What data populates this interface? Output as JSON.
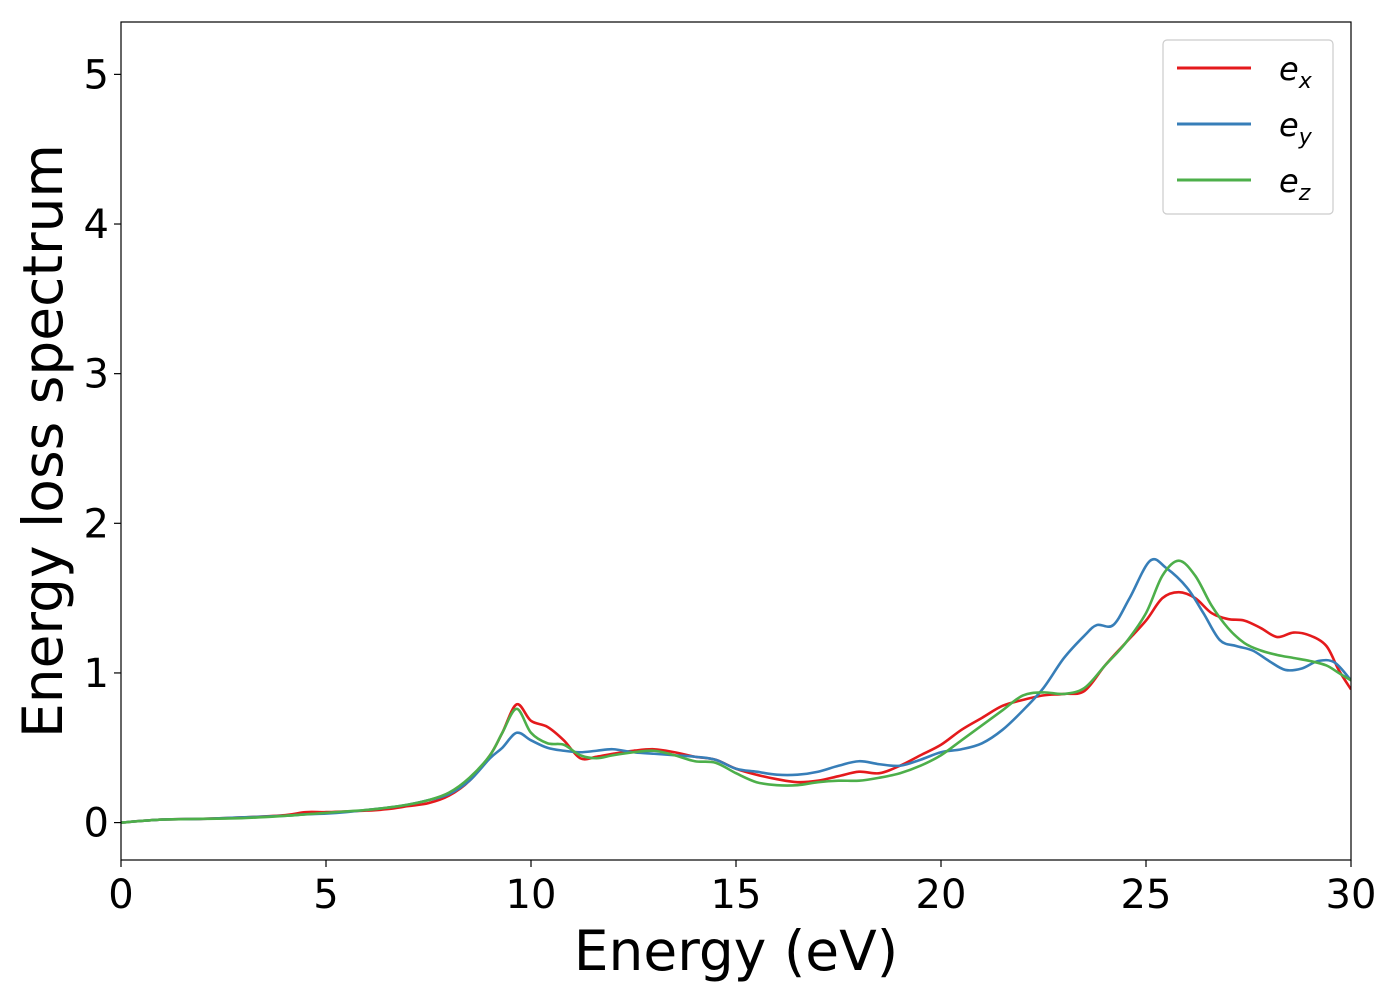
{
  "chart_data": {
    "type": "line",
    "title": "",
    "xlabel": "Energy (eV)",
    "ylabel": "Energy loss spectrum",
    "xlim": [
      0,
      30
    ],
    "ylim": [
      -0.25,
      5.35
    ],
    "xticks": [
      0,
      5,
      10,
      15,
      20,
      25,
      30
    ],
    "yticks": [
      0,
      1,
      2,
      3,
      4,
      5
    ],
    "grid": false,
    "legend": "top-right",
    "series": [
      {
        "name": "e_x",
        "label_main": "e",
        "label_sub": "x",
        "color": "#e41a1c",
        "x": [
          0,
          1,
          2,
          3,
          4,
          4.5,
          5,
          5.5,
          6,
          6.5,
          7,
          7.5,
          8,
          8.5,
          9,
          9.3,
          9.65,
          10,
          10.4,
          10.8,
          11.2,
          11.6,
          12,
          12.5,
          13,
          13.5,
          14,
          14.5,
          15,
          15.5,
          16,
          16.5,
          17,
          17.5,
          18,
          18.5,
          19,
          19.5,
          20,
          20.5,
          21,
          21.5,
          22,
          22.5,
          23,
          23.5,
          24,
          24.5,
          25,
          25.4,
          25.8,
          26.2,
          26.6,
          27,
          27.4,
          27.8,
          28.2,
          28.6,
          29,
          29.4,
          29.7,
          30
        ],
        "y": [
          0,
          0.02,
          0.025,
          0.035,
          0.05,
          0.07,
          0.07,
          0.075,
          0.08,
          0.09,
          0.11,
          0.13,
          0.18,
          0.28,
          0.45,
          0.6,
          0.79,
          0.68,
          0.64,
          0.55,
          0.43,
          0.44,
          0.46,
          0.48,
          0.49,
          0.47,
          0.44,
          0.42,
          0.36,
          0.32,
          0.29,
          0.27,
          0.28,
          0.31,
          0.34,
          0.33,
          0.38,
          0.45,
          0.52,
          0.62,
          0.7,
          0.78,
          0.82,
          0.85,
          0.86,
          0.88,
          1.05,
          1.2,
          1.35,
          1.5,
          1.54,
          1.5,
          1.4,
          1.36,
          1.35,
          1.3,
          1.24,
          1.27,
          1.25,
          1.18,
          1.02,
          0.89
        ]
      },
      {
        "name": "e_y",
        "label_main": "e",
        "label_sub": "y",
        "color": "#377eb8",
        "x": [
          0,
          1,
          2,
          3,
          4,
          4.5,
          5,
          5.5,
          6,
          6.5,
          7,
          7.5,
          8,
          8.5,
          9,
          9.3,
          9.65,
          10,
          10.4,
          10.8,
          11.2,
          11.6,
          12,
          12.5,
          13,
          13.5,
          14,
          14.5,
          15,
          15.5,
          16,
          16.5,
          17,
          17.5,
          18,
          18.5,
          19,
          19.5,
          20,
          20.5,
          21,
          21.5,
          22,
          22.5,
          23,
          23.5,
          23.8,
          24.2,
          24.6,
          25.1,
          25.5,
          26,
          26.4,
          26.8,
          27.2,
          27.6,
          28,
          28.4,
          28.8,
          29.2,
          29.6,
          30
        ],
        "y": [
          0,
          0.02,
          0.025,
          0.035,
          0.045,
          0.055,
          0.06,
          0.07,
          0.085,
          0.1,
          0.12,
          0.15,
          0.19,
          0.28,
          0.43,
          0.5,
          0.6,
          0.55,
          0.5,
          0.48,
          0.47,
          0.48,
          0.49,
          0.47,
          0.46,
          0.45,
          0.44,
          0.42,
          0.36,
          0.34,
          0.32,
          0.32,
          0.34,
          0.38,
          0.41,
          0.39,
          0.38,
          0.42,
          0.47,
          0.49,
          0.53,
          0.62,
          0.75,
          0.9,
          1.1,
          1.25,
          1.32,
          1.32,
          1.5,
          1.75,
          1.7,
          1.57,
          1.4,
          1.22,
          1.18,
          1.15,
          1.08,
          1.02,
          1.03,
          1.08,
          1.07,
          0.95
        ]
      },
      {
        "name": "e_z",
        "label_main": "e",
        "label_sub": "z",
        "color": "#4daf4a",
        "x": [
          0,
          1,
          2,
          3,
          4,
          4.5,
          5,
          5.5,
          6,
          6.5,
          7,
          7.5,
          8,
          8.5,
          9,
          9.3,
          9.65,
          10,
          10.4,
          10.8,
          11.2,
          11.6,
          12,
          12.5,
          13,
          13.5,
          14,
          14.5,
          15,
          15.5,
          16,
          16.5,
          17,
          17.5,
          18,
          18.5,
          19,
          19.5,
          20,
          20.5,
          21,
          21.5,
          22,
          22.5,
          23,
          23.5,
          24,
          24.5,
          25,
          25.4,
          25.8,
          26.2,
          26.6,
          27,
          27.4,
          27.8,
          28.2,
          28.6,
          29,
          29.4,
          29.7,
          30
        ],
        "y": [
          0,
          0.02,
          0.025,
          0.03,
          0.045,
          0.055,
          0.065,
          0.075,
          0.085,
          0.1,
          0.12,
          0.15,
          0.2,
          0.3,
          0.45,
          0.6,
          0.76,
          0.6,
          0.53,
          0.52,
          0.45,
          0.43,
          0.45,
          0.47,
          0.48,
          0.45,
          0.41,
          0.4,
          0.33,
          0.27,
          0.25,
          0.25,
          0.27,
          0.28,
          0.28,
          0.3,
          0.33,
          0.38,
          0.45,
          0.55,
          0.65,
          0.75,
          0.85,
          0.87,
          0.86,
          0.9,
          1.05,
          1.2,
          1.4,
          1.65,
          1.75,
          1.65,
          1.45,
          1.3,
          1.2,
          1.15,
          1.12,
          1.1,
          1.08,
          1.05,
          1.0,
          0.95
        ]
      }
    ]
  }
}
